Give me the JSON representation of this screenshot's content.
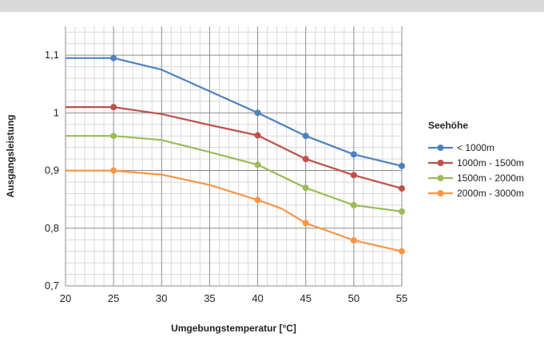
{
  "chart_data": {
    "type": "line",
    "title": "",
    "xlabel": "Umgebungstemperatur [°C]",
    "ylabel": "Ausgangsleistung",
    "xlim": [
      20,
      55
    ],
    "ylim": [
      0.7,
      1.15
    ],
    "x_ticks": [
      20,
      25,
      30,
      35,
      40,
      45,
      50,
      55
    ],
    "x_tick_labels": [
      "20",
      "25",
      "30",
      "35",
      "40",
      "45",
      "50",
      "55"
    ],
    "y_ticks": [
      0.7,
      0.8,
      0.9,
      1.0,
      1.1
    ],
    "y_tick_labels": [
      "0,7",
      "0,8",
      "0,9",
      "1",
      "1,1"
    ],
    "grid": true,
    "legend_title": "Seehöhe",
    "legend_position": "right",
    "series": [
      {
        "name": "< 1000m",
        "color": "#4f81bd",
        "points": [
          [
            20,
            1.095
          ],
          [
            25,
            1.095
          ],
          [
            30,
            1.075
          ],
          [
            40,
            1.0
          ],
          [
            45,
            0.96
          ],
          [
            50,
            0.928
          ],
          [
            55,
            0.908
          ]
        ],
        "markers": [
          [
            25,
            1.095
          ],
          [
            40,
            1.0
          ],
          [
            45,
            0.96
          ],
          [
            50,
            0.928
          ],
          [
            55,
            0.908
          ]
        ]
      },
      {
        "name": "1000m - 1500m",
        "color": "#c0504d",
        "points": [
          [
            20,
            1.01
          ],
          [
            25,
            1.01
          ],
          [
            30,
            0.998
          ],
          [
            35,
            0.979
          ],
          [
            40,
            0.961
          ],
          [
            45,
            0.92
          ],
          [
            50,
            0.892
          ],
          [
            55,
            0.869
          ]
        ],
        "markers": [
          [
            25,
            1.01
          ],
          [
            40,
            0.961
          ],
          [
            45,
            0.92
          ],
          [
            50,
            0.892
          ],
          [
            55,
            0.869
          ]
        ]
      },
      {
        "name": "1500m - 2000m",
        "color": "#9bbb59",
        "points": [
          [
            20,
            0.96
          ],
          [
            25,
            0.96
          ],
          [
            30,
            0.953
          ],
          [
            35,
            0.932
          ],
          [
            40,
            0.91
          ],
          [
            45,
            0.87
          ],
          [
            50,
            0.84
          ],
          [
            55,
            0.829
          ]
        ],
        "markers": [
          [
            25,
            0.96
          ],
          [
            40,
            0.91
          ],
          [
            45,
            0.87
          ],
          [
            50,
            0.84
          ],
          [
            55,
            0.829
          ]
        ]
      },
      {
        "name": "2000m - 3000m",
        "color": "#f79646",
        "points": [
          [
            20,
            0.9
          ],
          [
            25,
            0.9
          ],
          [
            30,
            0.893
          ],
          [
            35,
            0.875
          ],
          [
            40,
            0.849
          ],
          [
            42.5,
            0.834
          ],
          [
            45,
            0.809
          ],
          [
            50,
            0.779
          ],
          [
            55,
            0.76
          ]
        ],
        "markers": [
          [
            25,
            0.9
          ],
          [
            40,
            0.849
          ],
          [
            45,
            0.809
          ],
          [
            50,
            0.779
          ],
          [
            55,
            0.76
          ]
        ]
      }
    ]
  }
}
